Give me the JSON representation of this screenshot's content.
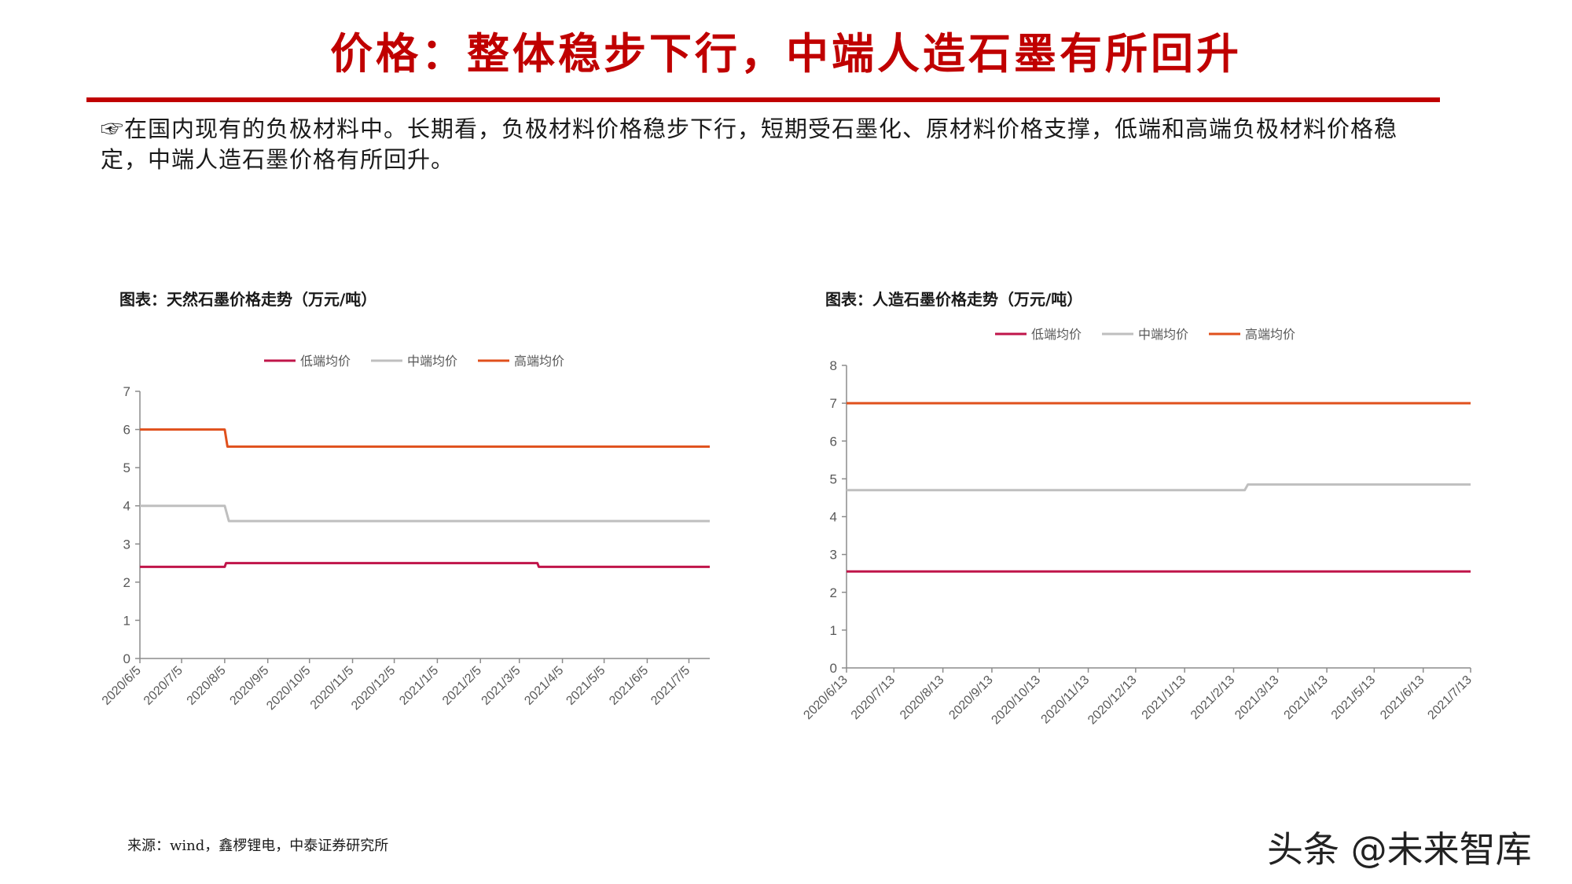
{
  "slide": {
    "title": "价格：整体稳步下行，中端人造石墨有所回升",
    "intro": "☞在国内现有的负极材料中。长期看，负极材料价格稳步下行，短期受石墨化、原材料价格支撑，低端和高端负极材料价格稳定，中端人造石墨价格有所回升。",
    "source": "来源：wind，鑫椤锂电，中泰证券研究所",
    "watermark": "头条 @未来智库"
  },
  "colors": {
    "title": "#c00000",
    "low": "#c0154a",
    "mid": "#bfbfbf",
    "high": "#e0501c"
  },
  "chart_data": [
    {
      "type": "line",
      "title": "图表：天然石墨价格走势（万元/吨）",
      "legend_position": "top",
      "grid": false,
      "ylim": [
        0,
        7
      ],
      "yticks": [
        0,
        1,
        2,
        3,
        4,
        5,
        6,
        7
      ],
      "x_range": [
        "2020-06-05",
        "2021-07-20"
      ],
      "xtick_labels": [
        "2020/6/5",
        "2020/7/5",
        "2020/8/5",
        "2020/9/5",
        "2020/10/5",
        "2020/11/5",
        "2020/12/5",
        "2021/1/5",
        "2021/2/5",
        "2021/3/5",
        "2021/4/5",
        "2021/5/5",
        "2021/6/5",
        "2021/7/5"
      ],
      "xtick_dates": [
        "2020-06-05",
        "2020-07-05",
        "2020-08-05",
        "2020-09-05",
        "2020-10-05",
        "2020-11-05",
        "2020-12-05",
        "2021-01-05",
        "2021-02-05",
        "2021-03-05",
        "2021-04-05",
        "2021-05-05",
        "2021-06-05",
        "2021-07-05"
      ],
      "series": [
        {
          "name": "低端均价",
          "color": "#c0154a",
          "points": [
            [
              "2020-06-05",
              2.4
            ],
            [
              "2020-08-05",
              2.4
            ],
            [
              "2020-08-06",
              2.5
            ],
            [
              "2021-03-18",
              2.5
            ],
            [
              "2021-03-19",
              2.4
            ],
            [
              "2021-07-20",
              2.4
            ]
          ]
        },
        {
          "name": "中端均价",
          "color": "#bfbfbf",
          "points": [
            [
              "2020-06-05",
              4.0
            ],
            [
              "2020-08-05",
              4.0
            ],
            [
              "2020-08-08",
              3.6
            ],
            [
              "2021-07-20",
              3.6
            ]
          ]
        },
        {
          "name": "高端均价",
          "color": "#e0501c",
          "points": [
            [
              "2020-06-05",
              6.0
            ],
            [
              "2020-08-05",
              6.0
            ],
            [
              "2020-08-07",
              5.55
            ],
            [
              "2021-07-20",
              5.55
            ]
          ]
        }
      ]
    },
    {
      "type": "line",
      "title": "图表：人造石墨价格走势（万元/吨）",
      "legend_position": "top",
      "grid": false,
      "ylim": [
        0,
        8
      ],
      "yticks": [
        0,
        1,
        2,
        3,
        4,
        5,
        6,
        7,
        8
      ],
      "x_range": [
        "2020-06-13",
        "2021-07-13"
      ],
      "xtick_labels": [
        "2020/6/13",
        "2020/7/13",
        "2020/8/13",
        "2020/9/13",
        "2020/10/13",
        "2020/11/13",
        "2020/12/13",
        "2021/1/13",
        "2021/2/13",
        "2021/3/13",
        "2021/4/13",
        "2021/5/13",
        "2021/6/13",
        "2021/7/13"
      ],
      "xtick_dates": [
        "2020-06-13",
        "2020-07-13",
        "2020-08-13",
        "2020-09-13",
        "2020-10-13",
        "2020-11-13",
        "2020-12-13",
        "2021-01-13",
        "2021-02-13",
        "2021-03-13",
        "2021-04-13",
        "2021-05-13",
        "2021-06-13",
        "2021-07-13"
      ],
      "series": [
        {
          "name": "低端均价",
          "color": "#c0154a",
          "points": [
            [
              "2020-06-13",
              2.55
            ],
            [
              "2021-07-13",
              2.55
            ]
          ]
        },
        {
          "name": "中端均价",
          "color": "#bfbfbf",
          "points": [
            [
              "2020-06-13",
              4.7
            ],
            [
              "2021-02-20",
              4.7
            ],
            [
              "2021-02-22",
              4.85
            ],
            [
              "2021-07-13",
              4.85
            ]
          ]
        },
        {
          "name": "高端均价",
          "color": "#e0501c",
          "points": [
            [
              "2020-06-13",
              7.0
            ],
            [
              "2021-07-13",
              7.0
            ]
          ]
        }
      ]
    }
  ]
}
